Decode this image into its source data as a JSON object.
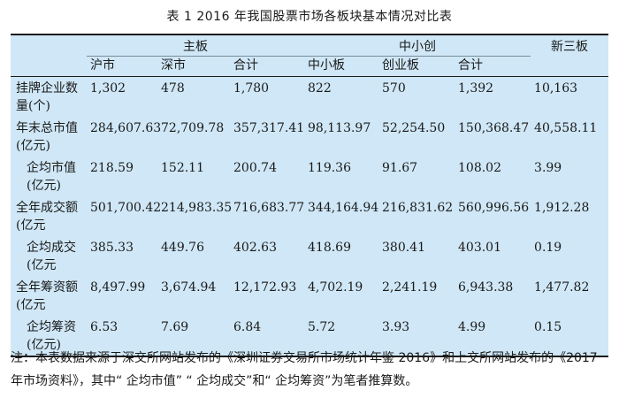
{
  "title": "表 1  2016 年我国股票市场各板块基本情况对比表",
  "header": {
    "groups": [
      "主板",
      "中小创",
      "新三板"
    ],
    "columns": [
      "沪市",
      "深市",
      "合计",
      "中小板",
      "创业板",
      "合计"
    ]
  },
  "rows": [
    {
      "label": "挂牌企业数量(个)",
      "cells": [
        "1,302",
        "478",
        "1,780",
        "822",
        "570",
        "1,392",
        "10,163"
      ]
    },
    {
      "label": "年末总市值(亿元)",
      "cells": [
        "284,607.63",
        "72,709.78",
        "357,317.41",
        "98,113.97",
        "52,254.50",
        "150,368.47",
        "40,558.11"
      ]
    },
    {
      "label": "企均市值(亿元)",
      "cells": [
        "218.59",
        "152.11",
        "200.74",
        "119.36",
        "91.67",
        "108.02",
        "3.99"
      ]
    },
    {
      "label": "全年成交额(亿元",
      "cells": [
        "501,700.42",
        "214,983.35",
        "716,683.77",
        "344,164.94",
        "216,831.62",
        "560,996.56",
        "1,912.28"
      ]
    },
    {
      "label": "企均成交(亿元",
      "cells": [
        "385.33",
        "449.76",
        "402.63",
        "418.69",
        "380.41",
        "403.01",
        "0.19"
      ]
    },
    {
      "label": "全年筹资额(亿元",
      "cells": [
        "8,497.99",
        "3,674.94",
        "12,172.93",
        "4,702.19",
        "2,241.19",
        "6,943.38",
        "1,477.82"
      ]
    },
    {
      "label": "企均筹资(亿元)",
      "cells": [
        "6.53",
        "7.69",
        "6.84",
        "5.72",
        "3.93",
        "4.99",
        "0.15"
      ]
    }
  ],
  "note": "注：本表数据来源于深交所网站发布的《深圳证券交易所市场统计年鉴 2016》和上交所网站发布的《2017 年市场资料》，其中“ 企均市值” “ 企均成交”和“ 企均筹资”为笔者推算数。",
  "colors": {
    "table_background": "#cfe7f6",
    "rule": "#1a1a1a"
  }
}
